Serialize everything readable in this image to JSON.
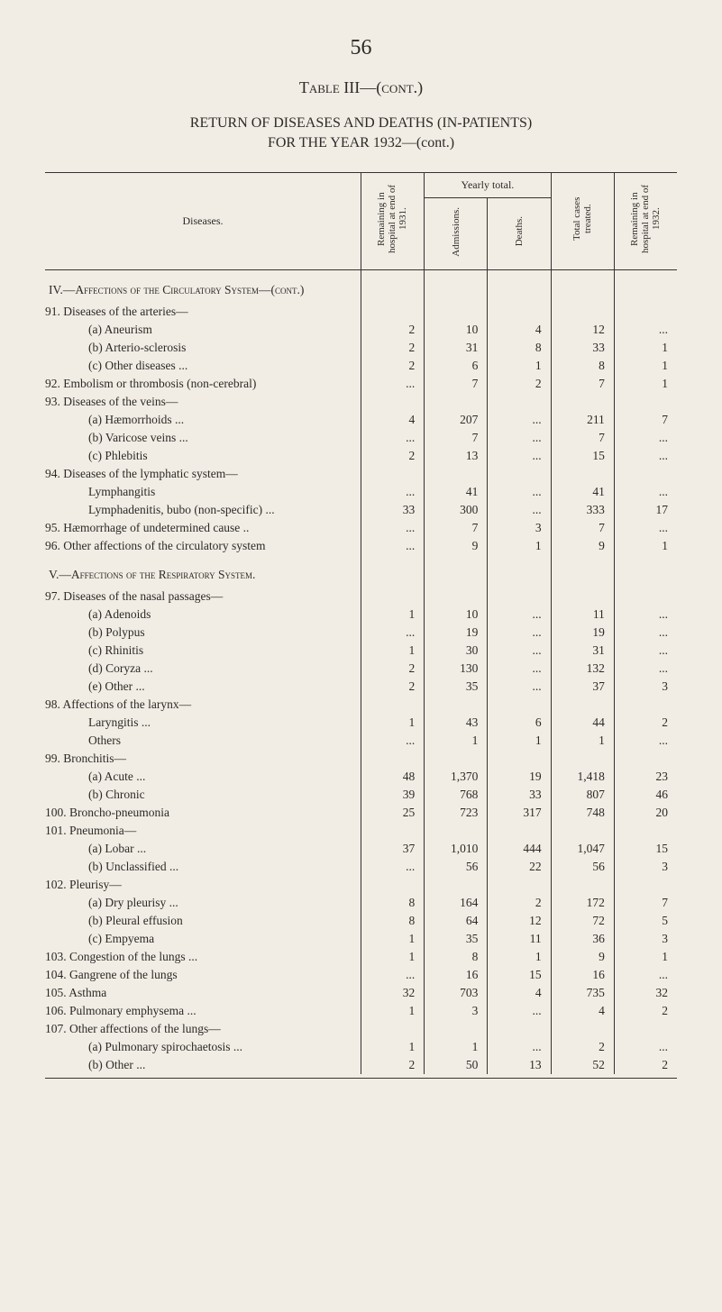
{
  "page_number": "56",
  "table_title": "Table III—(cont.)",
  "main_title_l1": "RETURN OF DISEASES AND DEATHS (IN-PATIENTS)",
  "main_title_l2": "FOR THE YEAR 1932—(cont.)",
  "headers": {
    "diseases": "Diseases.",
    "remaining_1931": "Remaining in hospital at end of 1931.",
    "yearly_total": "Yearly total.",
    "admissions": "Admissions.",
    "deaths": "Deaths.",
    "total_cases": "Total cases treated.",
    "remaining_1932": "Remaining in hospital at end of 1932."
  },
  "sections": {
    "iv": "IV.—Affections of the Circulatory System—(cont.)",
    "v": "V.—Affections of the Respiratory System."
  },
  "rows": [
    {
      "label": "91. Diseases of the arteries—",
      "i": 0,
      "v": [
        "",
        "",
        "",
        "",
        ""
      ]
    },
    {
      "label": "(a) Aneurism",
      "i": 2,
      "v": [
        "2",
        "10",
        "4",
        "12",
        "..."
      ]
    },
    {
      "label": "(b) Arterio-sclerosis",
      "i": 2,
      "v": [
        "2",
        "31",
        "8",
        "33",
        "1"
      ]
    },
    {
      "label": "(c) Other diseases ...",
      "i": 2,
      "v": [
        "2",
        "6",
        "1",
        "8",
        "1"
      ]
    },
    {
      "label": "92. Embolism or thrombosis (non-cerebral)",
      "i": 0,
      "v": [
        "...",
        "7",
        "2",
        "7",
        "1"
      ]
    },
    {
      "label": "93. Diseases of the veins—",
      "i": 0,
      "v": [
        "",
        "",
        "",
        "",
        ""
      ]
    },
    {
      "label": "(a) Hæmorrhoids ...",
      "i": 2,
      "v": [
        "4",
        "207",
        "...",
        "211",
        "7"
      ]
    },
    {
      "label": "(b) Varicose veins ...",
      "i": 2,
      "v": [
        "...",
        "7",
        "...",
        "7",
        "..."
      ]
    },
    {
      "label": "(c) Phlebitis",
      "i": 2,
      "v": [
        "2",
        "13",
        "...",
        "15",
        "..."
      ]
    },
    {
      "label": "94. Diseases of the lymphatic system—",
      "i": 0,
      "v": [
        "",
        "",
        "",
        "",
        ""
      ]
    },
    {
      "label": "Lymphangitis",
      "i": 2,
      "v": [
        "...",
        "41",
        "...",
        "41",
        "..."
      ]
    },
    {
      "label": "Lymphadenitis, bubo (non-specific) ...",
      "i": 2,
      "v": [
        "33",
        "300",
        "...",
        "333",
        "17"
      ]
    },
    {
      "label": "95. Hæmorrhage of undetermined cause ..",
      "i": 0,
      "v": [
        "...",
        "7",
        "3",
        "7",
        "..."
      ]
    },
    {
      "label": "96. Other affections of the circulatory system",
      "i": 0,
      "v": [
        "...",
        "9",
        "1",
        "9",
        "1"
      ]
    }
  ],
  "rows_v": [
    {
      "label": "97. Diseases of the nasal passages—",
      "i": 0,
      "v": [
        "",
        "",
        "",
        "",
        ""
      ]
    },
    {
      "label": "(a) Adenoids",
      "i": 2,
      "v": [
        "1",
        "10",
        "...",
        "11",
        "..."
      ]
    },
    {
      "label": "(b) Polypus",
      "i": 2,
      "v": [
        "...",
        "19",
        "...",
        "19",
        "..."
      ]
    },
    {
      "label": "(c) Rhinitis",
      "i": 2,
      "v": [
        "1",
        "30",
        "...",
        "31",
        "..."
      ]
    },
    {
      "label": "(d) Coryza ...",
      "i": 2,
      "v": [
        "2",
        "130",
        "...",
        "132",
        "..."
      ]
    },
    {
      "label": "(e) Other ...",
      "i": 2,
      "v": [
        "2",
        "35",
        "...",
        "37",
        "3"
      ]
    },
    {
      "label": "98. Affections of the larynx—",
      "i": 0,
      "v": [
        "",
        "",
        "",
        "",
        ""
      ]
    },
    {
      "label": "Laryngitis ...",
      "i": 2,
      "v": [
        "1",
        "43",
        "6",
        "44",
        "2"
      ]
    },
    {
      "label": "Others",
      "i": 2,
      "v": [
        "...",
        "1",
        "1",
        "1",
        "..."
      ]
    },
    {
      "label": "99. Bronchitis—",
      "i": 0,
      "v": [
        "",
        "",
        "",
        "",
        ""
      ]
    },
    {
      "label": "(a) Acute ...",
      "i": 2,
      "v": [
        "48",
        "1,370",
        "19",
        "1,418",
        "23"
      ]
    },
    {
      "label": "(b) Chronic",
      "i": 2,
      "v": [
        "39",
        "768",
        "33",
        "807",
        "46"
      ]
    },
    {
      "label": "100. Broncho-pneumonia",
      "i": 0,
      "v": [
        "25",
        "723",
        "317",
        "748",
        "20"
      ]
    },
    {
      "label": "101. Pneumonia—",
      "i": 0,
      "v": [
        "",
        "",
        "",
        "",
        ""
      ]
    },
    {
      "label": "(a) Lobar ...",
      "i": 2,
      "v": [
        "37",
        "1,010",
        "444",
        "1,047",
        "15"
      ]
    },
    {
      "label": "(b) Unclassified ...",
      "i": 2,
      "v": [
        "...",
        "56",
        "22",
        "56",
        "3"
      ]
    },
    {
      "label": "102. Pleurisy—",
      "i": 0,
      "v": [
        "",
        "",
        "",
        "",
        ""
      ]
    },
    {
      "label": "(a) Dry pleurisy ...",
      "i": 2,
      "v": [
        "8",
        "164",
        "2",
        "172",
        "7"
      ]
    },
    {
      "label": "(b) Pleural effusion",
      "i": 2,
      "v": [
        "8",
        "64",
        "12",
        "72",
        "5"
      ]
    },
    {
      "label": "(c) Empyema",
      "i": 2,
      "v": [
        "1",
        "35",
        "11",
        "36",
        "3"
      ]
    },
    {
      "label": "103. Congestion of the lungs ...",
      "i": 0,
      "v": [
        "1",
        "8",
        "1",
        "9",
        "1"
      ]
    },
    {
      "label": "104. Gangrene of the lungs",
      "i": 0,
      "v": [
        "...",
        "16",
        "15",
        "16",
        "..."
      ]
    },
    {
      "label": "105. Asthma",
      "i": 0,
      "v": [
        "32",
        "703",
        "4",
        "735",
        "32"
      ]
    },
    {
      "label": "106. Pulmonary emphysema ...",
      "i": 0,
      "v": [
        "1",
        "3",
        "...",
        "4",
        "2"
      ]
    },
    {
      "label": "107. Other affections of the lungs—",
      "i": 0,
      "v": [
        "",
        "",
        "",
        "",
        ""
      ]
    },
    {
      "label": "(a) Pulmonary spirochaetosis ...",
      "i": 2,
      "v": [
        "1",
        "1",
        "...",
        "2",
        "..."
      ]
    },
    {
      "label": "(b) Other ...",
      "i": 2,
      "v": [
        "2",
        "50",
        "13",
        "52",
        "2"
      ]
    }
  ],
  "styling": {
    "background_color": "#f2ede4",
    "text_color": "#2a2a28",
    "rule_color": "#333333",
    "body_font": "Georgia, Times New Roman, serif",
    "page_number_fontsize": 24,
    "table_title_fontsize": 18,
    "main_title_fontsize": 16,
    "row_fontsize": 13.5,
    "header_fontsize": 12,
    "column_widths": {
      "diseases": 310,
      "narrow": 58
    }
  }
}
